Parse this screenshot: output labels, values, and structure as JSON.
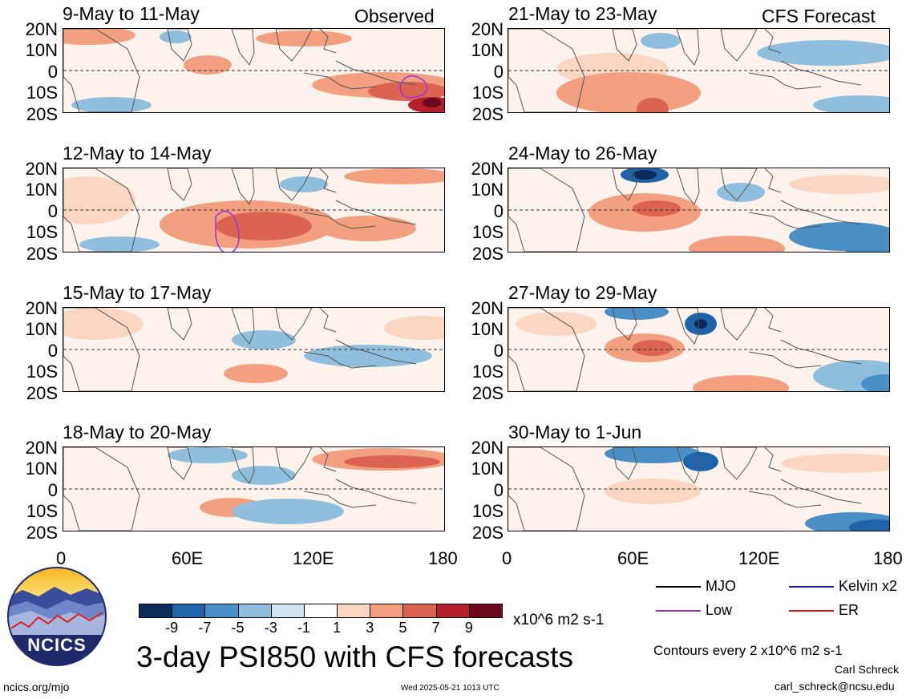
{
  "header": {
    "observed_label": "Observed",
    "forecast_label": "CFS Forecast"
  },
  "panels": {
    "left": [
      {
        "title": "9-May to 11-May"
      },
      {
        "title": "12-May to 14-May"
      },
      {
        "title": "15-May to 17-May"
      },
      {
        "title": "18-May to 20-May"
      }
    ],
    "right": [
      {
        "title": "21-May to 23-May"
      },
      {
        "title": "24-May to 26-May"
      },
      {
        "title": "27-May to 29-May"
      },
      {
        "title": "30-May to 1-Jun"
      }
    ]
  },
  "lat_labels": [
    "20N",
    "10N",
    "0",
    "10S",
    "20S"
  ],
  "lon_labels": [
    "0",
    "60E",
    "120E",
    "180"
  ],
  "colorbar": {
    "ticks": [
      "-9",
      "-7",
      "-5",
      "-3",
      "-1",
      "1",
      "3",
      "5",
      "7",
      "9"
    ],
    "colors": [
      "#0b2c5a",
      "#1f63a8",
      "#4a90c6",
      "#8fbfdd",
      "#cfe3f0",
      "#ffffff",
      "#fbd6c2",
      "#f3a081",
      "#db6450",
      "#b41f2c",
      "#6b0a1f"
    ],
    "units": "x10^6 m2 s-1"
  },
  "legend": {
    "mjo": "MJO",
    "kelvin": "Kelvin x2",
    "low": "Low",
    "er": "ER",
    "colors": {
      "mjo": "#000000",
      "kelvin": "#1414e6",
      "low": "#9b30e0",
      "er": "#e01414"
    }
  },
  "footer": {
    "main_title": "3-day PSI850 with CFS forecasts",
    "contours_note": "Contours every 2 x10^6 m2 s-1",
    "author": "Carl Schreck",
    "email": "carl_schreck@ncsu.edu",
    "url": "ncics.org/mjo",
    "timestamp": "Wed 2025-05-21 1013 UTC",
    "logo_text": "NCICS"
  }
}
